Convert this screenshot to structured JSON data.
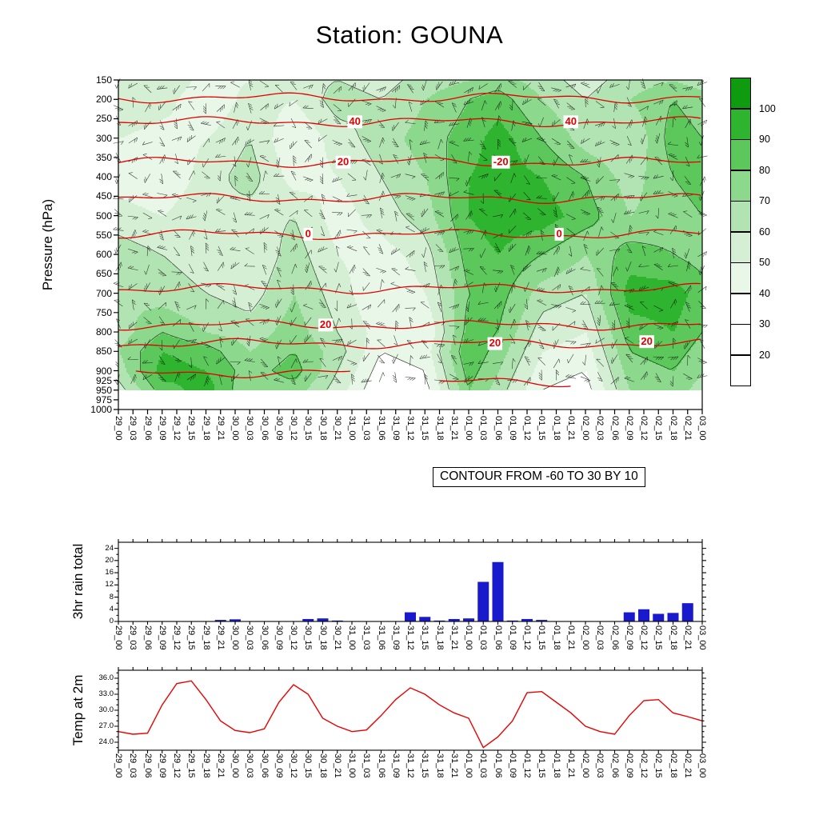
{
  "title": "Station: GOUNA",
  "time_labels": [
    "29_00",
    "29_03",
    "29_06",
    "29_09",
    "29_12",
    "29_15",
    "29_18",
    "29_21",
    "30_00",
    "30_03",
    "30_06",
    "30_09",
    "30_12",
    "30_15",
    "30_18",
    "30_21",
    "31_00",
    "31_03",
    "31_06",
    "31_09",
    "31_12",
    "31_15",
    "31_18",
    "31_21",
    "01_00",
    "01_03",
    "01_06",
    "01_09",
    "01_12",
    "01_15",
    "01_18",
    "01_21",
    "02_00",
    "02_03",
    "02_06",
    "02_09",
    "02_12",
    "02_15",
    "02_18",
    "02_21",
    "03_00"
  ],
  "panels": {
    "main": {
      "ylabel": "Pressure (hPa)",
      "pressure_ticks": [
        150,
        200,
        250,
        300,
        350,
        400,
        450,
        500,
        550,
        600,
        650,
        700,
        750,
        800,
        850,
        900,
        925,
        950,
        975,
        1000
      ],
      "caption": "CONTOUR FROM -60 TO 30 BY 10"
    },
    "rain": {
      "ylabel": "3hr rain total",
      "yticks": [
        0,
        4,
        8,
        12,
        16,
        20,
        24
      ]
    },
    "temp": {
      "ylabel": "Temp at 2m",
      "yticks": [
        "24.0",
        "27.0",
        "30.0",
        "33.0",
        "36.0"
      ]
    }
  },
  "colorbar": {
    "labels": [
      "100",
      "90",
      "80",
      "70",
      "60",
      "50",
      "40",
      "30",
      "20"
    ],
    "colors_top_down": [
      "#0f9b0f",
      "#2eb42e",
      "#5cc85c",
      "#8cd88c",
      "#b2e3b2",
      "#d4efd4",
      "#e9f7e9",
      "#ffffff",
      "#ffffff",
      "#ffffff"
    ]
  },
  "chart_data": [
    {
      "type": "heatmap",
      "title": "Time-pressure section: shaded humidity (%), black humidity contours, red temperature contours, wind barbs",
      "ylabel": "Pressure (hPa)",
      "ylim": [
        150,
        1000
      ],
      "categories": [
        "29_00",
        "29_03",
        "29_06",
        "29_09",
        "29_12",
        "29_15",
        "29_18",
        "29_21",
        "30_00",
        "30_03",
        "30_06",
        "30_09",
        "30_12",
        "30_15",
        "30_18",
        "30_21",
        "31_00",
        "31_03",
        "31_06",
        "31_09",
        "31_12",
        "31_15",
        "31_18",
        "31_21",
        "01_00",
        "01_03",
        "01_06",
        "01_09",
        "01_12",
        "01_15",
        "01_18",
        "01_21",
        "02_00",
        "02_03",
        "02_06",
        "02_09",
        "02_12",
        "02_15",
        "02_18",
        "02_21",
        "03_00"
      ],
      "shade_levels": [
        20,
        30,
        40,
        50,
        60,
        70,
        80,
        90,
        100
      ],
      "black_contour_levels": [
        40,
        60,
        80
      ],
      "grid_time_index": [
        0,
        3,
        6,
        9,
        12,
        15,
        18,
        21,
        24,
        26,
        29,
        32,
        35,
        38,
        40
      ],
      "grid_pressures": [
        150,
        200,
        300,
        400,
        500,
        600,
        700,
        800,
        850,
        900,
        950
      ],
      "grid_values_percent": [
        [
          55,
          60,
          45,
          50,
          55,
          60,
          55,
          65,
          70,
          75,
          65,
          55,
          65,
          70,
          65
        ],
        [
          60,
          55,
          40,
          55,
          50,
          65,
          60,
          70,
          80,
          85,
          70,
          60,
          70,
          80,
          75
        ],
        [
          50,
          45,
          50,
          60,
          40,
          55,
          65,
          75,
          85,
          95,
          80,
          65,
          60,
          85,
          80
        ],
        [
          45,
          40,
          55,
          65,
          45,
          50,
          60,
          70,
          90,
          95,
          90,
          80,
          65,
          80,
          85
        ],
        [
          55,
          50,
          60,
          55,
          60,
          45,
          55,
          65,
          90,
          95,
          95,
          85,
          70,
          75,
          80
        ],
        [
          65,
          60,
          55,
          50,
          65,
          50,
          45,
          55,
          85,
          90,
          80,
          70,
          85,
          80,
          75
        ],
        [
          70,
          65,
          60,
          55,
          70,
          55,
          40,
          50,
          80,
          85,
          65,
          60,
          95,
          95,
          85
        ],
        [
          65,
          80,
          70,
          65,
          75,
          60,
          45,
          40,
          85,
          80,
          55,
          50,
          85,
          90,
          80
        ],
        [
          70,
          90,
          85,
          70,
          80,
          65,
          40,
          45,
          90,
          75,
          50,
          45,
          80,
          85,
          75
        ],
        [
          65,
          95,
          90,
          75,
          85,
          60,
          35,
          40,
          85,
          70,
          45,
          40,
          75,
          80,
          70
        ],
        [
          55,
          85,
          95,
          70,
          75,
          55,
          30,
          35,
          80,
          65,
          40,
          35,
          70,
          75,
          65
        ]
      ],
      "red_contours": [
        {
          "pressure": 196
        },
        {
          "pressure": 258
        },
        {
          "pressure": 362
        },
        {
          "pressure": 455
        },
        {
          "pressure": 548
        },
        {
          "pressure": 688
        },
        {
          "pressure": 782
        },
        {
          "pressure": 830
        },
        {
          "pressure": 905,
          "x0": 0.03,
          "x1": 0.4
        },
        {
          "pressure": 930,
          "x0": 0.55,
          "x1": 0.78
        }
      ],
      "red_contour_labels": [
        {
          "text": "40",
          "x": 0.405,
          "pressure": 258
        },
        {
          "text": "40",
          "x": 0.775,
          "pressure": 258
        },
        {
          "text": "20",
          "x": 0.385,
          "pressure": 362
        },
        {
          "text": "-20",
          "x": 0.655,
          "pressure": 362
        },
        {
          "text": "0",
          "x": 0.325,
          "pressure": 548
        },
        {
          "text": "0",
          "x": 0.755,
          "pressure": 548
        },
        {
          "text": "20",
          "x": 0.355,
          "pressure": 782
        },
        {
          "text": "20",
          "x": 0.645,
          "pressure": 830
        },
        {
          "text": "20",
          "x": 0.905,
          "pressure": 825
        }
      ],
      "wind_barbs": true,
      "caption": "CONTOUR FROM -60 TO 30 BY 10"
    },
    {
      "type": "bar",
      "ylabel": "3hr rain total",
      "categories": [
        "29_00",
        "29_03",
        "29_06",
        "29_09",
        "29_12",
        "29_15",
        "29_18",
        "29_21",
        "30_00",
        "30_03",
        "30_06",
        "30_09",
        "30_12",
        "30_15",
        "30_18",
        "30_21",
        "31_00",
        "31_03",
        "31_06",
        "31_09",
        "31_12",
        "31_15",
        "31_18",
        "31_21",
        "01_00",
        "01_03",
        "01_06",
        "01_09",
        "01_12",
        "01_15",
        "01_18",
        "01_21",
        "02_00",
        "02_03",
        "02_06",
        "02_09",
        "02_12",
        "02_15",
        "02_18",
        "02_21",
        "03_00"
      ],
      "values": [
        0,
        0,
        0,
        0,
        0,
        0,
        0,
        0.5,
        0.7,
        0,
        0,
        0,
        0,
        0.8,
        1.0,
        0.3,
        0,
        0,
        0,
        0,
        3.0,
        1.5,
        0.3,
        0.8,
        1.0,
        13.0,
        19.5,
        0.3,
        0.8,
        0.5,
        0,
        0,
        0,
        0,
        0,
        3.0,
        4.0,
        2.5,
        2.8,
        6.0,
        0
      ],
      "ylim": [
        0,
        26
      ],
      "bar_color": "#1a1acd"
    },
    {
      "type": "line",
      "ylabel": "Temp at 2m",
      "categories": [
        "29_00",
        "29_03",
        "29_06",
        "29_09",
        "29_12",
        "29_15",
        "29_18",
        "29_21",
        "30_00",
        "30_03",
        "30_06",
        "30_09",
        "30_12",
        "30_15",
        "30_18",
        "30_21",
        "31_00",
        "31_03",
        "31_06",
        "31_09",
        "31_12",
        "31_15",
        "31_18",
        "31_21",
        "01_00",
        "01_03",
        "01_06",
        "01_09",
        "01_12",
        "01_15",
        "01_18",
        "01_21",
        "02_00",
        "02_03",
        "02_06",
        "02_09",
        "02_12",
        "02_15",
        "02_18",
        "02_21",
        "03_00"
      ],
      "values": [
        26.0,
        25.5,
        25.7,
        31.0,
        35.0,
        35.5,
        32.0,
        28.0,
        26.2,
        25.8,
        26.5,
        31.5,
        34.8,
        33.0,
        28.5,
        27.0,
        26.0,
        26.3,
        29.0,
        32.0,
        34.2,
        33.0,
        31.0,
        29.5,
        28.5,
        23.0,
        25.0,
        28.0,
        33.3,
        33.5,
        31.5,
        29.5,
        27.0,
        26.0,
        25.5,
        29.0,
        31.8,
        32.0,
        29.5,
        28.8,
        28.0
      ],
      "ylim": [
        22.5,
        37.5
      ],
      "line_color": "#e80000"
    }
  ]
}
